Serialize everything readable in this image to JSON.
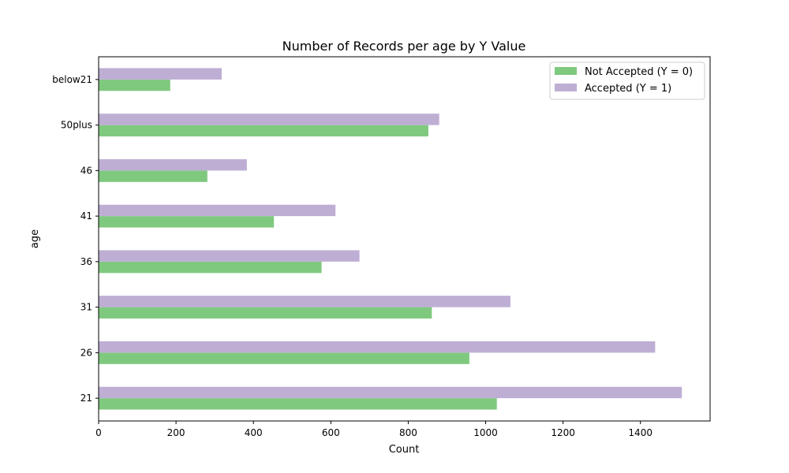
{
  "chart_data": {
    "type": "bar",
    "orientation": "horizontal",
    "title": "Number of Records per age by Y Value",
    "xlabel": "Count",
    "ylabel": "age",
    "categories": [
      "21",
      "26",
      "31",
      "36",
      "41",
      "46",
      "50plus",
      "below21"
    ],
    "series": [
      {
        "name": "Not Accepted (Y = 0)",
        "color": "#7fc97f",
        "values": [
          1029,
          958,
          861,
          576,
          453,
          281,
          852,
          185
        ]
      },
      {
        "name": "Accepted (Y = 1)",
        "color": "#beaed4",
        "values": [
          1507,
          1438,
          1064,
          674,
          612,
          383,
          880,
          318
        ]
      }
    ],
    "xlim": [
      0,
      1580
    ],
    "xticks": [
      0,
      200,
      400,
      600,
      800,
      1000,
      1200,
      1400
    ],
    "grid": false,
    "legend_position": "top-right"
  }
}
